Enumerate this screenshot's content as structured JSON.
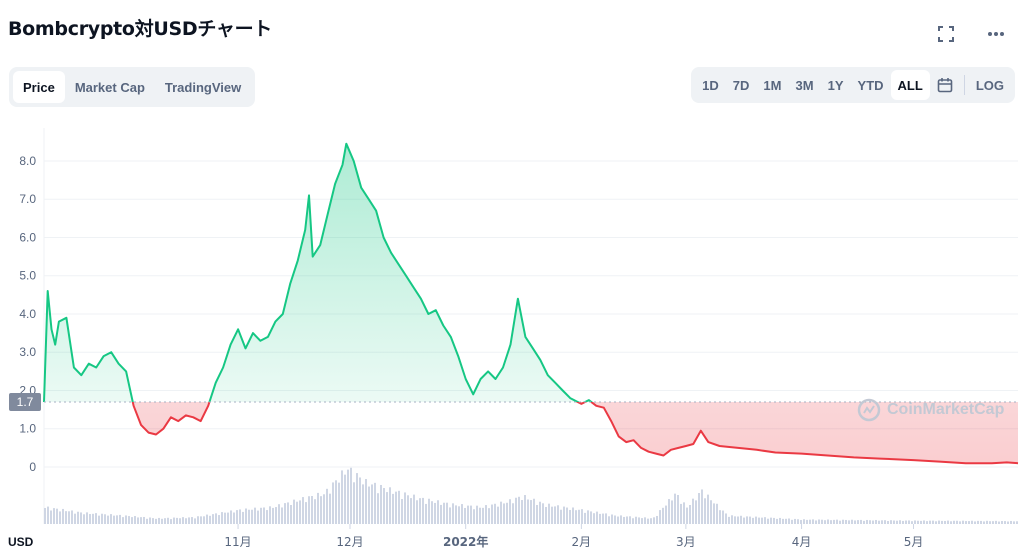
{
  "header": {
    "title": "Bombcrypto対USDチャート"
  },
  "top_icons": [
    "expand-icon",
    "more-icon"
  ],
  "tabs": [
    {
      "label": "Price",
      "active": true
    },
    {
      "label": "Market Cap",
      "active": false
    },
    {
      "label": "TradingView",
      "active": false
    }
  ],
  "ranges": [
    {
      "label": "1D",
      "active": false
    },
    {
      "label": "7D",
      "active": false
    },
    {
      "label": "1M",
      "active": false
    },
    {
      "label": "3M",
      "active": false
    },
    {
      "label": "1Y",
      "active": false
    },
    {
      "label": "YTD",
      "active": false
    },
    {
      "label": "ALL",
      "active": true
    }
  ],
  "calendar_icon": "calendar-icon",
  "log_label": "LOG",
  "watermark": "CoinMarketCap",
  "colors": {
    "up": "#16c784",
    "down": "#ea3943",
    "volume": "#cfd6e4",
    "grid": "#eff2f5",
    "marker": "#808a9d"
  },
  "chart_data": {
    "type": "area",
    "y_unit": "USD",
    "reference_price": 1.7,
    "reference_label": "1.7",
    "ylim": [
      0,
      8.6
    ],
    "yticks": [
      0,
      1.0,
      2.0,
      3.0,
      4.0,
      5.0,
      6.0,
      7.0,
      8.0
    ],
    "ytick_labels": [
      "0",
      "1.0",
      "2.0",
      "3.0",
      "4.0",
      "5.0",
      "6.0",
      "7.0",
      "8.0"
    ],
    "xlim": [
      "2021-09-10",
      "2022-05-29"
    ],
    "xticks": [
      {
        "date": "2021-11-01",
        "label": "11月"
      },
      {
        "date": "2021-12-01",
        "label": "12月"
      },
      {
        "date": "2022-01-01",
        "label": "2022年"
      },
      {
        "date": "2022-02-01",
        "label": "2月"
      },
      {
        "date": "2022-03-01",
        "label": "3月"
      },
      {
        "date": "2022-04-01",
        "label": "4月"
      },
      {
        "date": "2022-05-01",
        "label": "5月"
      }
    ],
    "series": [
      {
        "points": [
          [
            "2021-09-10",
            1.7
          ],
          [
            "2021-09-11",
            4.6
          ],
          [
            "2021-09-12",
            3.6
          ],
          [
            "2021-09-13",
            3.2
          ],
          [
            "2021-09-14",
            3.8
          ],
          [
            "2021-09-16",
            3.9
          ],
          [
            "2021-09-18",
            2.6
          ],
          [
            "2021-09-20",
            2.4
          ],
          [
            "2021-09-22",
            2.7
          ],
          [
            "2021-09-24",
            2.6
          ],
          [
            "2021-09-26",
            2.9
          ],
          [
            "2021-09-28",
            3.0
          ],
          [
            "2021-09-30",
            2.7
          ],
          [
            "2021-10-02",
            2.5
          ],
          [
            "2021-10-04",
            1.6
          ],
          [
            "2021-10-06",
            1.1
          ],
          [
            "2021-10-08",
            0.9
          ],
          [
            "2021-10-10",
            0.85
          ],
          [
            "2021-10-12",
            1.0
          ],
          [
            "2021-10-14",
            1.3
          ],
          [
            "2021-10-16",
            1.2
          ],
          [
            "2021-10-18",
            1.35
          ],
          [
            "2021-10-20",
            1.3
          ],
          [
            "2021-10-22",
            1.2
          ],
          [
            "2021-10-24",
            1.6
          ],
          [
            "2021-10-26",
            2.2
          ],
          [
            "2021-10-28",
            2.6
          ],
          [
            "2021-10-30",
            3.2
          ],
          [
            "2021-11-01",
            3.6
          ],
          [
            "2021-11-03",
            3.1
          ],
          [
            "2021-11-05",
            3.5
          ],
          [
            "2021-11-07",
            3.3
          ],
          [
            "2021-11-09",
            3.4
          ],
          [
            "2021-11-11",
            3.8
          ],
          [
            "2021-11-13",
            4.0
          ],
          [
            "2021-11-15",
            4.8
          ],
          [
            "2021-11-17",
            5.4
          ],
          [
            "2021-11-19",
            6.2
          ],
          [
            "2021-11-20",
            7.1
          ],
          [
            "2021-11-21",
            5.5
          ],
          [
            "2021-11-23",
            5.8
          ],
          [
            "2021-11-25",
            6.6
          ],
          [
            "2021-11-27",
            7.4
          ],
          [
            "2021-11-29",
            7.9
          ],
          [
            "2021-11-30",
            8.45
          ],
          [
            "2021-12-02",
            8.0
          ],
          [
            "2021-12-04",
            7.3
          ],
          [
            "2021-12-06",
            7.0
          ],
          [
            "2021-12-08",
            6.7
          ],
          [
            "2021-12-10",
            6.0
          ],
          [
            "2021-12-12",
            5.6
          ],
          [
            "2021-12-14",
            5.3
          ],
          [
            "2021-12-16",
            5.0
          ],
          [
            "2021-12-18",
            4.7
          ],
          [
            "2021-12-20",
            4.4
          ],
          [
            "2021-12-22",
            4.0
          ],
          [
            "2021-12-24",
            4.1
          ],
          [
            "2021-12-26",
            3.7
          ],
          [
            "2021-12-28",
            3.4
          ],
          [
            "2021-12-30",
            2.9
          ],
          [
            "2022-01-01",
            2.3
          ],
          [
            "2022-01-03",
            1.9
          ],
          [
            "2022-01-05",
            2.3
          ],
          [
            "2022-01-07",
            2.5
          ],
          [
            "2022-01-09",
            2.3
          ],
          [
            "2022-01-11",
            2.6
          ],
          [
            "2022-01-13",
            3.2
          ],
          [
            "2022-01-15",
            4.4
          ],
          [
            "2022-01-17",
            3.4
          ],
          [
            "2022-01-19",
            3.1
          ],
          [
            "2022-01-21",
            2.8
          ],
          [
            "2022-01-23",
            2.4
          ],
          [
            "2022-01-25",
            2.2
          ],
          [
            "2022-01-27",
            2.0
          ],
          [
            "2022-01-29",
            1.8
          ],
          [
            "2022-02-01",
            1.65
          ],
          [
            "2022-02-03",
            1.75
          ],
          [
            "2022-02-05",
            1.6
          ],
          [
            "2022-02-07",
            1.55
          ],
          [
            "2022-02-09",
            1.2
          ],
          [
            "2022-02-11",
            0.8
          ],
          [
            "2022-02-13",
            0.65
          ],
          [
            "2022-02-15",
            0.7
          ],
          [
            "2022-02-17",
            0.5
          ],
          [
            "2022-02-19",
            0.4
          ],
          [
            "2022-02-21",
            0.35
          ],
          [
            "2022-02-23",
            0.3
          ],
          [
            "2022-02-25",
            0.45
          ],
          [
            "2022-02-27",
            0.5
          ],
          [
            "2022-03-01",
            0.55
          ],
          [
            "2022-03-03",
            0.6
          ],
          [
            "2022-03-05",
            0.95
          ],
          [
            "2022-03-07",
            0.65
          ],
          [
            "2022-03-10",
            0.55
          ],
          [
            "2022-03-15",
            0.5
          ],
          [
            "2022-03-20",
            0.45
          ],
          [
            "2022-03-25",
            0.38
          ],
          [
            "2022-04-01",
            0.35
          ],
          [
            "2022-04-08",
            0.3
          ],
          [
            "2022-04-15",
            0.25
          ],
          [
            "2022-04-22",
            0.22
          ],
          [
            "2022-05-01",
            0.18
          ],
          [
            "2022-05-08",
            0.14
          ],
          [
            "2022-05-15",
            0.1
          ],
          [
            "2022-05-22",
            0.1
          ],
          [
            "2022-05-26",
            0.12
          ],
          [
            "2022-05-29",
            0.1
          ]
        ]
      }
    ],
    "volume": [
      [
        "2021-09-10",
        0.3
      ],
      [
        "2021-09-20",
        0.2
      ],
      [
        "2021-10-01",
        0.15
      ],
      [
        "2021-10-10",
        0.1
      ],
      [
        "2021-10-20",
        0.12
      ],
      [
        "2021-11-01",
        0.25
      ],
      [
        "2021-11-10",
        0.3
      ],
      [
        "2021-11-18",
        0.45
      ],
      [
        "2021-11-24",
        0.55
      ],
      [
        "2021-11-30",
        1.0
      ],
      [
        "2021-12-05",
        0.75
      ],
      [
        "2021-12-12",
        0.6
      ],
      [
        "2021-12-20",
        0.45
      ],
      [
        "2021-12-28",
        0.35
      ],
      [
        "2022-01-05",
        0.3
      ],
      [
        "2022-01-12",
        0.4
      ],
      [
        "2022-01-16",
        0.5
      ],
      [
        "2022-01-22",
        0.35
      ],
      [
        "2022-02-01",
        0.25
      ],
      [
        "2022-02-10",
        0.15
      ],
      [
        "2022-02-20",
        0.1
      ],
      [
        "2022-02-26",
        0.55
      ],
      [
        "2022-03-01",
        0.3
      ],
      [
        "2022-03-05",
        0.6
      ],
      [
        "2022-03-12",
        0.15
      ],
      [
        "2022-04-01",
        0.08
      ],
      [
        "2022-05-01",
        0.06
      ],
      [
        "2022-05-29",
        0.05
      ]
    ]
  }
}
